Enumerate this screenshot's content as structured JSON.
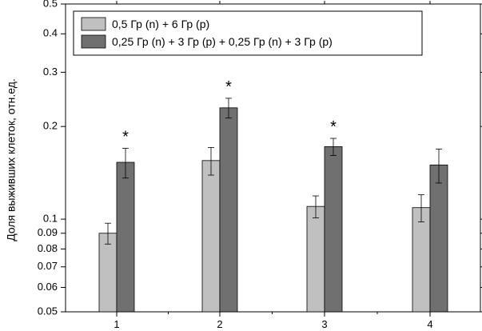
{
  "chart_data": {
    "type": "bar",
    "ylabel": "Доля выживших клеток, отн.ед.",
    "xlabel": "",
    "y_scale": "log",
    "ylim": [
      0.05,
      0.5
    ],
    "y_ticks": [
      0.05,
      0.06,
      0.07,
      0.08,
      0.09,
      0.1,
      0.2,
      0.3,
      0.4,
      0.5
    ],
    "y_tick_labels": [
      "0.05",
      "0.06",
      "0.07",
      "0.08",
      "0.09",
      "0.1",
      "0.2",
      "0.3",
      "0.4",
      "0.5"
    ],
    "categories": [
      "1",
      "2",
      "3",
      "4"
    ],
    "legend_position": "top-left",
    "grid": false,
    "series": [
      {
        "name": "0,5 Гр (n) + 6 Гр (p)",
        "color": "#c0c0c0",
        "values": [
          0.09,
          0.155,
          0.11,
          0.109
        ],
        "errors": [
          0.007,
          0.016,
          0.009,
          0.011
        ]
      },
      {
        "name": "0,25 Гр (n) + 3 Гр (p) + 0,25 Гр (n) + 3 Гр (p)",
        "color": "#707070",
        "values": [
          0.153,
          0.23,
          0.172,
          0.15
        ],
        "errors": [
          0.017,
          0.017,
          0.011,
          0.019
        ]
      }
    ],
    "annotations": [
      {
        "category_index": 0,
        "series_index": 1,
        "text": "*"
      },
      {
        "category_index": 1,
        "series_index": 1,
        "text": "*"
      },
      {
        "category_index": 2,
        "series_index": 1,
        "text": "*"
      }
    ]
  }
}
